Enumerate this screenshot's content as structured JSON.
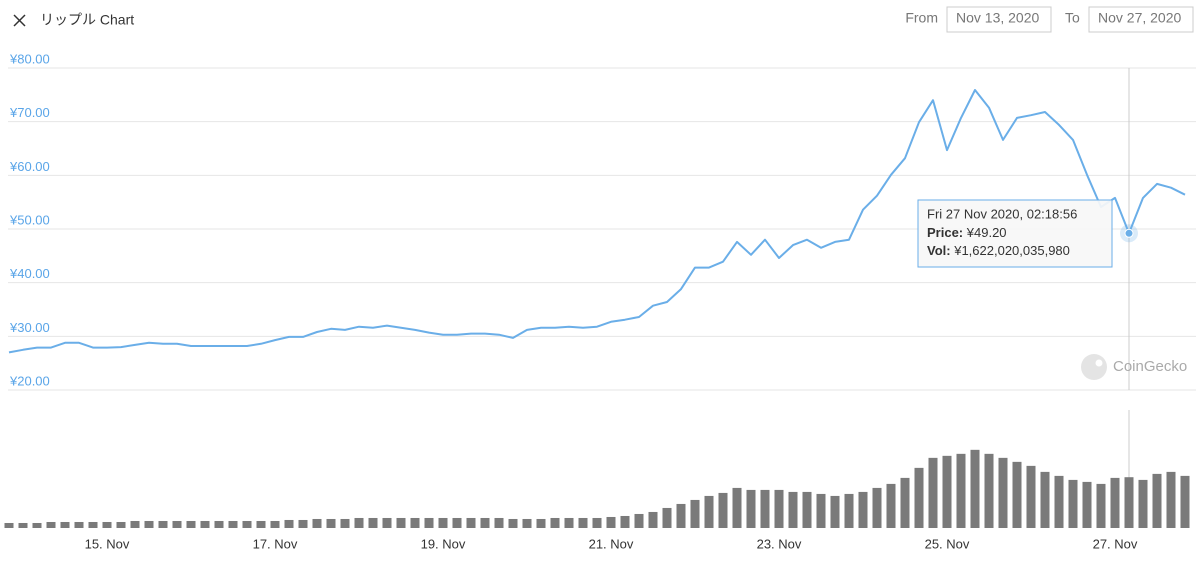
{
  "header": {
    "title": "リップル Chart",
    "from_label": "From",
    "from": "Nov 13, 2020",
    "to_label": "To",
    "to": "Nov 27, 2020"
  },
  "watermark": "CoinGecko",
  "tooltip": {
    "date": "Fri 27 Nov 2020, 02:18:56",
    "price_label": "Price:",
    "price": "¥49.20",
    "vol_label": "Vol:",
    "vol": "¥1,622,020,035,980"
  },
  "chart_data": {
    "type": "line",
    "x": [
      "2020-11-13T20:00",
      "2020-11-14T00:00",
      "2020-11-14T04:00",
      "2020-11-14T08:00",
      "2020-11-14T12:00",
      "2020-11-14T16:00",
      "2020-11-14T20:00",
      "2020-11-15T00:00",
      "2020-11-15T04:00",
      "2020-11-15T08:00",
      "2020-11-15T12:00",
      "2020-11-15T16:00",
      "2020-11-15T20:00",
      "2020-11-16T00:00",
      "2020-11-16T04:00",
      "2020-11-16T08:00",
      "2020-11-16T12:00",
      "2020-11-16T16:00",
      "2020-11-16T20:00",
      "2020-11-17T00:00",
      "2020-11-17T04:00",
      "2020-11-17T08:00",
      "2020-11-17T12:00",
      "2020-11-17T16:00",
      "2020-11-17T20:00",
      "2020-11-18T00:00",
      "2020-11-18T04:00",
      "2020-11-18T08:00",
      "2020-11-18T12:00",
      "2020-11-18T16:00",
      "2020-11-18T20:00",
      "2020-11-19T00:00",
      "2020-11-19T04:00",
      "2020-11-19T08:00",
      "2020-11-19T12:00",
      "2020-11-19T16:00",
      "2020-11-19T20:00",
      "2020-11-20T00:00",
      "2020-11-20T04:00",
      "2020-11-20T08:00",
      "2020-11-20T12:00",
      "2020-11-20T16:00",
      "2020-11-20T20:00",
      "2020-11-21T00:00",
      "2020-11-21T04:00",
      "2020-11-21T08:00",
      "2020-11-21T12:00",
      "2020-11-21T16:00",
      "2020-11-21T20:00",
      "2020-11-22T00:00",
      "2020-11-22T04:00",
      "2020-11-22T08:00",
      "2020-11-22T12:00",
      "2020-11-22T16:00",
      "2020-11-22T20:00",
      "2020-11-23T00:00",
      "2020-11-23T04:00",
      "2020-11-23T08:00",
      "2020-11-23T12:00",
      "2020-11-23T16:00",
      "2020-11-23T20:00",
      "2020-11-24T00:00",
      "2020-11-24T04:00",
      "2020-11-24T08:00",
      "2020-11-24T12:00",
      "2020-11-24T16:00",
      "2020-11-24T20:00",
      "2020-11-25T00:00",
      "2020-11-25T04:00",
      "2020-11-25T08:00",
      "2020-11-25T12:00",
      "2020-11-25T16:00",
      "2020-11-25T20:00",
      "2020-11-26T00:00",
      "2020-11-26T04:00",
      "2020-11-26T08:00",
      "2020-11-26T12:00",
      "2020-11-26T16:00",
      "2020-11-26T20:00",
      "2020-11-27T00:00",
      "2020-11-27T04:00",
      "2020-11-27T08:00",
      "2020-11-27T12:00",
      "2020-11-27T16:00",
      "2020-11-27T20:00"
    ],
    "series": [
      {
        "color": "#6aaee8",
        "values": [
          27.0,
          27.5,
          27.9,
          27.9,
          28.8,
          28.8,
          27.9,
          27.9,
          28.0,
          28.4,
          28.8,
          28.6,
          28.6,
          28.2,
          28.2,
          28.2,
          28.2,
          28.2,
          28.6,
          29.3,
          29.9,
          29.9,
          30.8,
          31.4,
          31.2,
          31.8,
          31.6,
          32.0,
          31.6,
          31.2,
          30.7,
          30.3,
          30.3,
          30.5,
          30.5,
          30.3,
          29.7,
          31.2,
          31.6,
          31.6,
          31.8,
          31.6,
          31.8,
          32.7,
          33.1,
          33.6,
          35.7,
          36.4,
          38.8,
          42.8,
          42.8,
          43.9,
          47.6,
          45.2,
          48.0,
          44.6,
          47.0,
          48.0,
          46.5,
          47.6,
          48.0,
          53.6,
          56.2,
          60.1,
          63.2,
          69.9,
          74.0,
          64.7,
          70.7,
          75.9,
          72.6,
          66.6,
          70.7,
          71.2,
          71.8,
          69.4,
          66.6,
          60.1,
          54.1,
          55.8,
          49.2,
          55.8,
          58.4,
          57.7,
          56.4
        ]
      },
      {
        "type": "bar",
        "axis": "y2",
        "color": "#7a7a7a",
        "values": [
          160000000000.0,
          160000000000.0,
          160000000000.0,
          192000000000.0,
          192000000000.0,
          192000000000.0,
          192000000000.0,
          192000000000.0,
          192000000000.0,
          224000000000.0,
          224000000000.0,
          224000000000.0,
          224000000000.0,
          224000000000.0,
          224000000000.0,
          224000000000.0,
          224000000000.0,
          224000000000.0,
          224000000000.0,
          224000000000.0,
          256000000000.0,
          256000000000.0,
          288000000000.0,
          288000000000.0,
          288000000000.0,
          320000000000.0,
          320000000000.0,
          320000000000.0,
          320000000000.0,
          320000000000.0,
          320000000000.0,
          320000000000.0,
          320000000000.0,
          320000000000.0,
          320000000000.0,
          320000000000.0,
          288000000000.0,
          288000000000.0,
          288000000000.0,
          320000000000.0,
          320000000000.0,
          320000000000.0,
          320000000000.0,
          352000000000.0,
          384000000000.0,
          448000000000.0,
          512000000000.0,
          640000000000.0,
          768000000000.0,
          896000000000.0,
          1024000000000.0,
          1120000000000.0,
          1280000000000.0,
          1216000000000.0,
          1216000000000.0,
          1216000000000.0,
          1152000000000.0,
          1152000000000.0,
          1088000000000.0,
          1024000000000.0,
          1088000000000.0,
          1152000000000.0,
          1280000000000.0,
          1408000000000.0,
          1600000000000.0,
          1920000000000.0,
          2240000000000.0,
          2304000000000.0,
          2368000000000.0,
          2496000000000.0,
          2368000000000.0,
          2240000000000.0,
          2112000000000.0,
          1984000000000.0,
          1792000000000.0,
          1664000000000.0,
          1536000000000.0,
          1472000000000.0,
          1408000000000.0,
          1600000000000.0,
          1622000000000.0,
          1536000000000.0,
          1728000000000.0,
          1792000000000.0,
          1664000000000.0
        ]
      }
    ],
    "xlim": [
      "2020-11-13T20:00",
      "2020-11-27T20:00"
    ],
    "xticks": [
      {
        "value": "2020-11-15T00:00",
        "label": "15. Nov"
      },
      {
        "value": "2020-11-17T00:00",
        "label": "17. Nov"
      },
      {
        "value": "2020-11-19T00:00",
        "label": "19. Nov"
      },
      {
        "value": "2020-11-21T00:00",
        "label": "21. Nov"
      },
      {
        "value": "2020-11-23T00:00",
        "label": "23. Nov"
      },
      {
        "value": "2020-11-25T00:00",
        "label": "25. Nov"
      },
      {
        "value": "2020-11-27T00:00",
        "label": "27. Nov"
      }
    ],
    "ylim": [
      20,
      80
    ],
    "yticks": [
      {
        "value": 20,
        "label": "¥20.00"
      },
      {
        "value": 30,
        "label": "¥30.00"
      },
      {
        "value": 40,
        "label": "¥40.00"
      },
      {
        "value": 50,
        "label": "¥50.00"
      },
      {
        "value": 60,
        "label": "¥60.00"
      },
      {
        "value": 70,
        "label": "¥70.00"
      },
      {
        "value": 80,
        "label": "¥80.00"
      }
    ],
    "y2lim": [
      0,
      3800000000000.0
    ],
    "grid": true,
    "highlight_index": 80
  }
}
